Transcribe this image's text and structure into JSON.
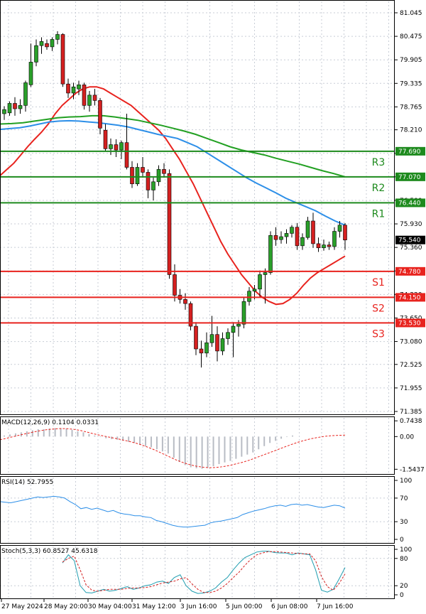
{
  "chart_data": [
    {
      "type": "candlestick",
      "panel": "price",
      "price_axis": [
        "81.045",
        "80.475",
        "79.905",
        "79.335",
        "78.765",
        "78.210",
        "77.640",
        "77.070",
        "76.500",
        "75.930",
        "75.360",
        "74.790",
        "74.220",
        "73.650",
        "73.080",
        "72.525",
        "71.955",
        "71.385"
      ],
      "x_tick_labels": [
        "27 May 2024",
        "28 May 20:00",
        "30 May 04:00",
        "31 May 12:00",
        "3 Jun 16:00",
        "5 Jun 00:00",
        "6 Jun 08:00",
        "7 Jun 16:00"
      ],
      "ylim": [
        71.385,
        81.045
      ],
      "candles": [
        {
          "o": 78.6,
          "h": 78.78,
          "l": 78.45,
          "c": 78.7
        },
        {
          "o": 78.62,
          "h": 78.9,
          "l": 78.55,
          "c": 78.85
        },
        {
          "o": 78.85,
          "h": 79.0,
          "l": 78.55,
          "c": 78.72
        },
        {
          "o": 78.72,
          "h": 78.95,
          "l": 78.6,
          "c": 78.8
        },
        {
          "o": 78.8,
          "h": 79.4,
          "l": 78.65,
          "c": 79.35
        },
        {
          "o": 79.3,
          "h": 80.3,
          "l": 79.25,
          "c": 79.85
        },
        {
          "o": 79.85,
          "h": 80.4,
          "l": 79.75,
          "c": 80.25
        },
        {
          "o": 80.25,
          "h": 80.45,
          "l": 80.05,
          "c": 80.35
        },
        {
          "o": 80.3,
          "h": 80.4,
          "l": 80.15,
          "c": 80.22
        },
        {
          "o": 80.22,
          "h": 80.45,
          "l": 80.12,
          "c": 80.4
        },
        {
          "o": 80.4,
          "h": 80.6,
          "l": 80.28,
          "c": 80.52
        },
        {
          "o": 80.52,
          "h": 80.55,
          "l": 79.25,
          "c": 79.32
        },
        {
          "o": 79.32,
          "h": 79.45,
          "l": 78.98,
          "c": 79.1
        },
        {
          "o": 79.1,
          "h": 79.35,
          "l": 78.95,
          "c": 79.25
        },
        {
          "o": 79.2,
          "h": 79.4,
          "l": 79.05,
          "c": 79.3
        },
        {
          "o": 79.3,
          "h": 79.35,
          "l": 78.7,
          "c": 78.8
        },
        {
          "o": 78.8,
          "h": 79.15,
          "l": 78.65,
          "c": 79.05
        },
        {
          "o": 79.05,
          "h": 79.2,
          "l": 78.8,
          "c": 78.92
        },
        {
          "o": 78.92,
          "h": 78.98,
          "l": 78.1,
          "c": 78.25
        },
        {
          "o": 78.2,
          "h": 78.35,
          "l": 77.7,
          "c": 77.75
        },
        {
          "o": 77.75,
          "h": 78.0,
          "l": 77.6,
          "c": 77.85
        },
        {
          "o": 77.85,
          "h": 77.98,
          "l": 77.55,
          "c": 77.72
        },
        {
          "o": 77.72,
          "h": 77.95,
          "l": 77.5,
          "c": 77.9
        },
        {
          "o": 77.9,
          "h": 78.6,
          "l": 77.25,
          "c": 77.3
        },
        {
          "o": 77.3,
          "h": 77.45,
          "l": 76.8,
          "c": 76.9
        },
        {
          "o": 76.9,
          "h": 77.4,
          "l": 76.85,
          "c": 77.3
        },
        {
          "o": 77.3,
          "h": 77.55,
          "l": 77.05,
          "c": 77.18
        },
        {
          "o": 77.18,
          "h": 77.25,
          "l": 76.55,
          "c": 76.75
        },
        {
          "o": 76.75,
          "h": 77.05,
          "l": 76.5,
          "c": 76.95
        },
        {
          "o": 76.95,
          "h": 77.35,
          "l": 76.85,
          "c": 77.25
        },
        {
          "o": 77.25,
          "h": 77.4,
          "l": 77.05,
          "c": 77.15
        },
        {
          "o": 77.15,
          "h": 77.25,
          "l": 74.6,
          "c": 74.7
        },
        {
          "o": 74.7,
          "h": 74.95,
          "l": 74.05,
          "c": 74.2
        },
        {
          "o": 74.2,
          "h": 74.35,
          "l": 74.0,
          "c": 74.1
        },
        {
          "o": 74.1,
          "h": 74.25,
          "l": 73.85,
          "c": 74.0
        },
        {
          "o": 74.0,
          "h": 74.05,
          "l": 73.35,
          "c": 73.45
        },
        {
          "o": 73.45,
          "h": 73.55,
          "l": 72.75,
          "c": 72.9
        },
        {
          "o": 72.9,
          "h": 73.1,
          "l": 72.45,
          "c": 72.8
        },
        {
          "o": 72.8,
          "h": 73.3,
          "l": 72.7,
          "c": 73.05
        },
        {
          "o": 73.05,
          "h": 73.7,
          "l": 72.95,
          "c": 73.25
        },
        {
          "o": 73.25,
          "h": 73.45,
          "l": 72.6,
          "c": 72.85
        },
        {
          "o": 72.85,
          "h": 73.3,
          "l": 72.75,
          "c": 73.15
        },
        {
          "o": 73.15,
          "h": 73.4,
          "l": 73.0,
          "c": 73.3
        },
        {
          "o": 73.3,
          "h": 73.55,
          "l": 72.7,
          "c": 73.45
        },
        {
          "o": 73.45,
          "h": 73.6,
          "l": 73.2,
          "c": 73.5
        },
        {
          "o": 73.5,
          "h": 74.15,
          "l": 73.4,
          "c": 74.05
        },
        {
          "o": 74.05,
          "h": 74.4,
          "l": 73.95,
          "c": 74.3
        },
        {
          "o": 74.3,
          "h": 74.45,
          "l": 74.1,
          "c": 74.35
        },
        {
          "o": 74.35,
          "h": 74.8,
          "l": 74.15,
          "c": 74.7
        },
        {
          "o": 74.7,
          "h": 74.85,
          "l": 74.0,
          "c": 74.75
        },
        {
          "o": 74.75,
          "h": 75.75,
          "l": 74.7,
          "c": 75.65
        },
        {
          "o": 75.65,
          "h": 75.85,
          "l": 75.4,
          "c": 75.55
        },
        {
          "o": 75.55,
          "h": 75.75,
          "l": 75.45,
          "c": 75.62
        },
        {
          "o": 75.62,
          "h": 75.8,
          "l": 75.45,
          "c": 75.7
        },
        {
          "o": 75.7,
          "h": 75.9,
          "l": 75.6,
          "c": 75.85
        },
        {
          "o": 75.85,
          "h": 75.95,
          "l": 75.3,
          "c": 75.4
        },
        {
          "o": 75.4,
          "h": 75.7,
          "l": 75.3,
          "c": 75.6
        },
        {
          "o": 75.6,
          "h": 76.1,
          "l": 75.55,
          "c": 76.0
        },
        {
          "o": 76.0,
          "h": 76.2,
          "l": 75.35,
          "c": 75.45
        },
        {
          "o": 75.45,
          "h": 75.6,
          "l": 75.25,
          "c": 75.35
        },
        {
          "o": 75.35,
          "h": 75.55,
          "l": 75.28,
          "c": 75.42
        },
        {
          "o": 75.42,
          "h": 75.5,
          "l": 75.3,
          "c": 75.38
        },
        {
          "o": 75.38,
          "h": 75.85,
          "l": 75.3,
          "c": 75.75
        },
        {
          "o": 75.75,
          "h": 76.0,
          "l": 75.6,
          "c": 75.9
        },
        {
          "o": 75.9,
          "h": 75.95,
          "l": 75.3,
          "c": 75.54
        }
      ],
      "moving_averages": [
        {
          "color": "#e8231e",
          "values": [
            77.1,
            77.25,
            77.4,
            77.6,
            77.8,
            77.98,
            78.15,
            78.35,
            78.6,
            78.8,
            78.95,
            79.1,
            79.2,
            79.25,
            79.25,
            79.2,
            79.1,
            79.0,
            78.9,
            78.8,
            78.65,
            78.5,
            78.35,
            78.2,
            78.0,
            77.75,
            77.5,
            77.2,
            76.9,
            76.55,
            76.2,
            75.85,
            75.5,
            75.2,
            74.95,
            74.7,
            74.5,
            74.3,
            74.15,
            74.05,
            73.98,
            74.0,
            74.1,
            74.25,
            74.45,
            74.62,
            74.75,
            74.85,
            74.95,
            75.05,
            75.15
          ]
        },
        {
          "color": "#2d8fe8",
          "values": [
            78.22,
            78.24,
            78.26,
            78.3,
            78.35,
            78.4,
            78.42,
            78.43,
            78.42,
            78.4,
            78.38,
            78.35,
            78.32,
            78.28,
            78.22,
            78.16,
            78.1,
            78.05,
            78.0,
            77.9,
            77.8,
            77.65,
            77.5,
            77.35,
            77.2,
            77.05,
            76.92,
            76.8,
            76.68,
            76.55,
            76.45,
            76.35,
            76.25,
            76.12,
            76.0,
            75.9
          ]
        },
        {
          "color": "#22a022",
          "values": [
            78.35,
            78.36,
            78.38,
            78.42,
            78.46,
            78.5,
            78.52,
            78.53,
            78.55,
            78.55,
            78.52,
            78.48,
            78.44,
            78.38,
            78.32,
            78.25,
            78.18,
            78.1,
            78.0,
            77.9,
            77.8,
            77.72,
            77.66,
            77.6,
            77.52,
            77.45,
            77.38,
            77.3,
            77.22,
            77.15,
            77.07
          ]
        }
      ],
      "levels": [
        {
          "name": "R3",
          "value": 77.69,
          "color": "#1d8a1d",
          "box": "77.690"
        },
        {
          "name": "R2",
          "value": 77.07,
          "color": "#1d8a1d",
          "box": "77.070"
        },
        {
          "name": "R1",
          "value": 76.44,
          "color": "#1d8a1d",
          "box": "76.440"
        },
        {
          "name": "S1",
          "value": 74.78,
          "color": "#e8231e",
          "box": "74.780"
        },
        {
          "name": "S2",
          "value": 74.15,
          "color": "#e8231e",
          "box": "74.150"
        },
        {
          "name": "S3",
          "value": 73.53,
          "color": "#e8231e",
          "box": "73.530"
        }
      ],
      "current_price": {
        "value": 75.54,
        "label": "75.540"
      }
    },
    {
      "type": "histogram",
      "panel": "macd",
      "title": "MACD(12,26,9) 0.1104 0.0331",
      "axis_labels": [
        "0.7438",
        "0.00",
        "-1.5437"
      ],
      "ylim": [
        -1.6,
        0.75
      ],
      "histogram": [
        0.05,
        0.1,
        0.15,
        0.2,
        0.25,
        0.3,
        0.35,
        0.35,
        0.38,
        0.4,
        0.4,
        0.38,
        0.32,
        0.25,
        0.2,
        0.12,
        0.05,
        -0.02,
        -0.08,
        -0.12,
        -0.15,
        -0.2,
        -0.25,
        -0.3,
        -0.38,
        -0.45,
        -0.5,
        -0.6,
        -0.7,
        -0.8,
        -1.0,
        -1.2,
        -1.35,
        -1.45,
        -1.5,
        -1.52,
        -1.48,
        -1.4,
        -1.3,
        -1.22,
        -1.15,
        -1.05,
        -0.95,
        -0.85,
        -0.75,
        -0.6,
        -0.45,
        -0.3,
        -0.2,
        -0.1,
        -0.02,
        0.05
      ],
      "signal": [
        -0.15,
        -0.08,
        0.0,
        0.08,
        0.15,
        0.22,
        0.28,
        0.33,
        0.36,
        0.38,
        0.37,
        0.34,
        0.28,
        0.2,
        0.12,
        0.05,
        -0.02,
        -0.08,
        -0.15,
        -0.22,
        -0.3,
        -0.4,
        -0.52,
        -0.65,
        -0.8,
        -0.95,
        -1.1,
        -1.22,
        -1.32,
        -1.4,
        -1.45,
        -1.47,
        -1.46,
        -1.42,
        -1.36,
        -1.28,
        -1.2,
        -1.1,
        -0.98,
        -0.86,
        -0.74,
        -0.62,
        -0.5,
        -0.38,
        -0.27,
        -0.18,
        -0.1,
        -0.04,
        0.01,
        0.04,
        0.06,
        0.07
      ]
    },
    {
      "type": "line",
      "panel": "rsi",
      "title": "RSI(14) 52.7955",
      "axis_labels": [
        "100",
        "70",
        "30",
        "0"
      ],
      "ylim": [
        0,
        100
      ],
      "values": [
        64,
        63,
        62,
        64,
        66,
        68,
        70,
        72,
        71,
        72,
        73,
        72,
        70,
        64,
        59,
        52,
        54,
        51,
        53,
        50,
        47,
        49,
        45,
        43,
        42,
        40,
        40,
        38,
        37,
        32,
        30,
        27,
        24,
        22,
        21,
        21,
        22,
        23,
        24,
        28,
        30,
        31,
        33,
        35,
        37,
        42,
        45,
        48,
        50,
        52,
        55,
        57,
        58,
        56,
        59,
        60,
        58,
        59,
        57,
        55,
        54,
        56,
        58,
        57,
        53
      ]
    },
    {
      "type": "line",
      "panel": "stochastic",
      "title": "Stoch(5,3,3) 60.8527 45.6318",
      "axis_labels": [
        "100",
        "80",
        "20",
        "0"
      ],
      "ylim": [
        0,
        100
      ],
      "series": [
        {
          "color": "#1f9db0",
          "values": [
            70,
            88,
            75,
            20,
            5,
            4,
            8,
            12,
            8,
            10,
            14,
            18,
            12,
            15,
            20,
            22,
            28,
            30,
            25,
            38,
            44,
            20,
            8,
            3,
            4,
            8,
            15,
            28,
            38,
            55,
            70,
            82,
            88,
            94,
            96,
            96,
            93,
            92,
            92,
            88,
            92,
            90,
            88,
            55,
            10,
            6,
            12,
            35,
            60
          ]
        },
        {
          "color": "#d42020",
          "values": [
            72,
            80,
            85,
            55,
            22,
            10,
            8,
            10,
            12,
            12,
            12,
            14,
            15,
            15,
            16,
            18,
            22,
            26,
            28,
            30,
            35,
            38,
            24,
            12,
            5,
            5,
            8,
            15,
            25,
            38,
            50,
            65,
            78,
            88,
            92,
            95,
            95,
            94,
            93,
            92,
            91,
            90,
            90,
            75,
            40,
            18,
            10,
            25,
            46
          ]
        }
      ]
    }
  ]
}
